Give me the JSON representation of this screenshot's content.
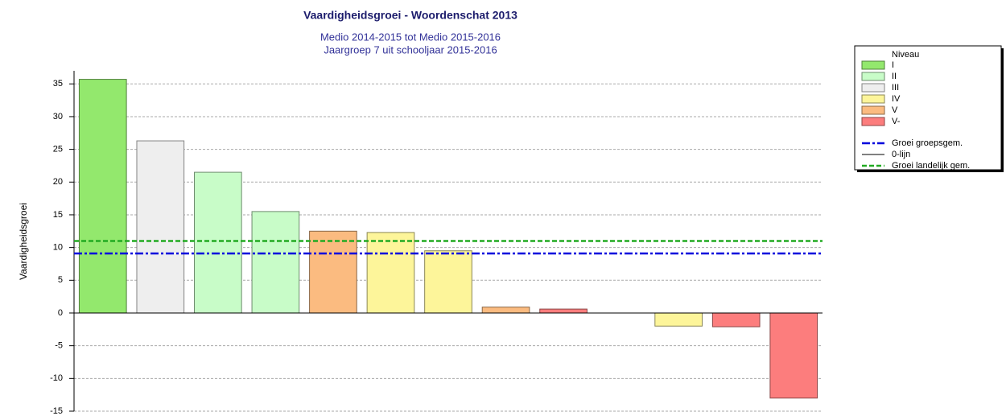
{
  "chart_data": {
    "type": "bar",
    "title": "Vaardigheidsgroei - Woordenschat 2013",
    "subtitle": [
      "Medio 2014-2015 tot Medio 2015-2016",
      "Jaargroep 7 uit schooljaar 2015-2016"
    ],
    "y_label": "Vaardigheidsgroei",
    "categories": [
      null,
      null,
      null,
      null,
      null,
      null,
      null,
      null,
      null,
      null,
      null,
      null,
      null
    ],
    "values": [
      35.7,
      26.3,
      21.5,
      15.5,
      12.5,
      12.3,
      9.5,
      0.9,
      0.6,
      0,
      -2,
      -2.1,
      -13
    ],
    "colors": [
      "#93e86d",
      "#eeeeee",
      "#c8fcc8",
      "#c8fcc8",
      "#fbbb80",
      "#fdf59a",
      "#fdf59a",
      "#fbbb80",
      "#fc7d7d",
      "#fdf59a",
      "#fdf59a",
      "#fc7d7d",
      "#fc7d7d"
    ],
    "ylim": [
      -15,
      37
    ],
    "yticks": [
      -15,
      -10,
      -5,
      0,
      5,
      10,
      15,
      20,
      25,
      30,
      35
    ],
    "grid": true,
    "legend_title": "Niveau",
    "levels": [
      {
        "name": "I",
        "color": "#93e86d"
      },
      {
        "name": "II",
        "color": "#c8fcc8"
      },
      {
        "name": "III",
        "color": "#eeeeee"
      },
      {
        "name": "IV",
        "color": "#fdf59a"
      },
      {
        "name": "V",
        "color": "#fbbb80"
      },
      {
        "name": "V-",
        "color": "#fc7d7d"
      }
    ],
    "lines": [
      {
        "name": "Groei groepsgem.",
        "value": 9.1,
        "color": "#0000dd",
        "dash": "dashdot"
      },
      {
        "name": "0-lijn",
        "value": 0,
        "color": "#000000",
        "dash": "solid"
      },
      {
        "name": "Groei landelijk gem.",
        "value": 11,
        "color": "#22aa22",
        "dash": "dashed"
      }
    ]
  }
}
